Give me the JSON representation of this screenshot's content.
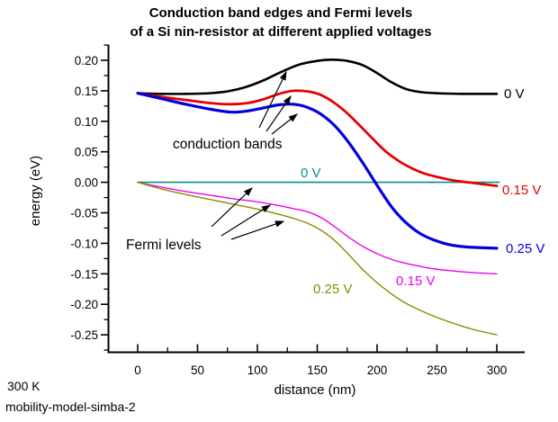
{
  "title": {
    "line1": "Conduction band edges and Fermi levels",
    "line2": "of a Si nin-resistor at different applied voltages"
  },
  "footer": {
    "temperature": "300 K",
    "model_name": "mobility-model-simba-2"
  },
  "chart_data": {
    "type": "line",
    "title": "Conduction band edges and Fermi levels of a Si nin-resistor at different applied voltages",
    "xlabel": "distance (nm)",
    "ylabel": "energy (eV)",
    "xlim": [
      -28,
      325
    ],
    "ylim": [
      -0.278,
      0.225
    ],
    "grid": false,
    "legend_position": "none",
    "x_ticks": [
      "0",
      "50",
      "100",
      "150",
      "200",
      "250",
      "300"
    ],
    "x_tick_values": [
      0,
      50,
      100,
      150,
      200,
      250,
      300
    ],
    "y_ticks": [
      "0.20",
      "0.15",
      "0.10",
      "0.05",
      "0.00",
      "-0.05",
      "-0.10",
      "-0.15",
      "-0.20",
      "-0.25"
    ],
    "y_tick_values": [
      0.2,
      0.15,
      0.1,
      0.05,
      0.0,
      -0.05,
      -0.1,
      -0.15,
      -0.2,
      -0.25
    ],
    "series": [
      {
        "id": "fermi-0v",
        "name": "Fermi level at 0 V",
        "label": "0 V",
        "color": "#0d8c8c",
        "group": "fermi-level",
        "points": [
          [
            0,
            0.0
          ],
          [
            302,
            0.0
          ]
        ]
      },
      {
        "id": "fermi-015v",
        "name": "Fermi level at 0.15 V",
        "label": "0.15 V",
        "color": "#f000f0",
        "group": "fermi-level",
        "points": [
          [
            0,
            0.0
          ],
          [
            20,
            -0.008
          ],
          [
            40,
            -0.015
          ],
          [
            60,
            -0.021
          ],
          [
            80,
            -0.027
          ],
          [
            100,
            -0.032
          ],
          [
            115,
            -0.037
          ],
          [
            130,
            -0.043
          ],
          [
            143,
            -0.049
          ],
          [
            155,
            -0.06
          ],
          [
            166,
            -0.075
          ],
          [
            177,
            -0.091
          ],
          [
            188,
            -0.105
          ],
          [
            199,
            -0.116
          ],
          [
            210,
            -0.125
          ],
          [
            222,
            -0.132
          ],
          [
            234,
            -0.137
          ],
          [
            248,
            -0.142
          ],
          [
            262,
            -0.145
          ],
          [
            280,
            -0.148
          ],
          [
            300,
            -0.15
          ]
        ]
      },
      {
        "id": "fermi-025v",
        "name": "Fermi level at 0.25 V",
        "label": "0.25 V",
        "color": "#8a8a00",
        "group": "fermi-level",
        "points": [
          [
            0,
            0.0
          ],
          [
            20,
            -0.011
          ],
          [
            40,
            -0.02
          ],
          [
            60,
            -0.028
          ],
          [
            80,
            -0.036
          ],
          [
            100,
            -0.044
          ],
          [
            115,
            -0.051
          ],
          [
            130,
            -0.059
          ],
          [
            143,
            -0.068
          ],
          [
            155,
            -0.081
          ],
          [
            166,
            -0.098
          ],
          [
            177,
            -0.12
          ],
          [
            188,
            -0.143
          ],
          [
            199,
            -0.163
          ],
          [
            210,
            -0.18
          ],
          [
            222,
            -0.196
          ],
          [
            234,
            -0.208
          ],
          [
            248,
            -0.22
          ],
          [
            262,
            -0.23
          ],
          [
            280,
            -0.241
          ],
          [
            300,
            -0.25
          ]
        ]
      },
      {
        "id": "cb-0v",
        "name": "Conduction band edge at 0 V",
        "label": "0 V",
        "color": "#000000",
        "group": "conduction-band",
        "points": [
          [
            0,
            0.146
          ],
          [
            20,
            0.145
          ],
          [
            40,
            0.145
          ],
          [
            60,
            0.146
          ],
          [
            75,
            0.149
          ],
          [
            90,
            0.156
          ],
          [
            105,
            0.167
          ],
          [
            120,
            0.181
          ],
          [
            135,
            0.193
          ],
          [
            150,
            0.199
          ],
          [
            162,
            0.201
          ],
          [
            175,
            0.199
          ],
          [
            188,
            0.192
          ],
          [
            200,
            0.179
          ],
          [
            212,
            0.164
          ],
          [
            224,
            0.153
          ],
          [
            236,
            0.148
          ],
          [
            250,
            0.146
          ],
          [
            270,
            0.145
          ],
          [
            300,
            0.145
          ]
        ]
      },
      {
        "id": "cb-015v",
        "name": "Conduction band edge at 0.15 V",
        "label": "0.15 V",
        "color": "#e80000",
        "group": "conduction-band",
        "points": [
          [
            0,
            0.146
          ],
          [
            20,
            0.14
          ],
          [
            40,
            0.135
          ],
          [
            60,
            0.13
          ],
          [
            78,
            0.128
          ],
          [
            92,
            0.13
          ],
          [
            105,
            0.136
          ],
          [
            118,
            0.145
          ],
          [
            130,
            0.15
          ],
          [
            142,
            0.149
          ],
          [
            152,
            0.144
          ],
          [
            163,
            0.132
          ],
          [
            174,
            0.115
          ],
          [
            185,
            0.094
          ],
          [
            196,
            0.072
          ],
          [
            207,
            0.051
          ],
          [
            218,
            0.035
          ],
          [
            229,
            0.023
          ],
          [
            240,
            0.014
          ],
          [
            252,
            0.008
          ],
          [
            264,
            0.003
          ],
          [
            276,
            0.0
          ],
          [
            288,
            -0.003
          ],
          [
            300,
            -0.006
          ]
        ]
      },
      {
        "id": "cb-025v",
        "name": "Conduction band edge at 0.25 V",
        "label": "0.25 V",
        "color": "#0000e0",
        "group": "conduction-band",
        "points": [
          [
            0,
            0.146
          ],
          [
            20,
            0.137
          ],
          [
            40,
            0.128
          ],
          [
            60,
            0.12
          ],
          [
            78,
            0.115
          ],
          [
            92,
            0.117
          ],
          [
            105,
            0.122
          ],
          [
            118,
            0.127
          ],
          [
            130,
            0.128
          ],
          [
            140,
            0.124
          ],
          [
            152,
            0.113
          ],
          [
            164,
            0.094
          ],
          [
            176,
            0.066
          ],
          [
            188,
            0.032
          ],
          [
            200,
            -0.005
          ],
          [
            212,
            -0.04
          ],
          [
            224,
            -0.066
          ],
          [
            236,
            -0.084
          ],
          [
            248,
            -0.095
          ],
          [
            260,
            -0.102
          ],
          [
            275,
            -0.106
          ],
          [
            300,
            -0.108
          ]
        ]
      }
    ],
    "annotations": [
      {
        "id": "conduction-bands",
        "text": "conduction bands"
      },
      {
        "id": "fermi-levels",
        "text": "Fermi levels"
      }
    ]
  }
}
